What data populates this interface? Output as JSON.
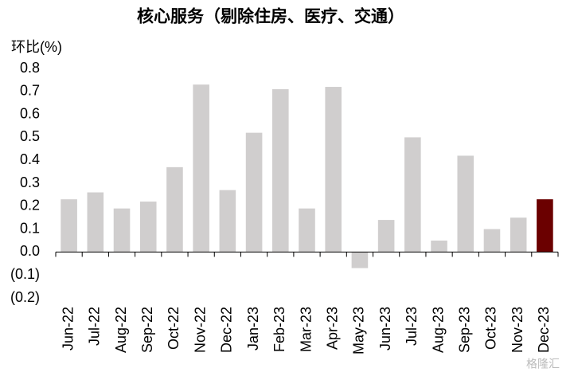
{
  "chart_data": {
    "type": "bar",
    "title": "核心服务（剔除住房、医疗、交通）",
    "y_label": "环比(%)",
    "categories": [
      "Jun-22",
      "Jul-22",
      "Aug-22",
      "Sep-22",
      "Oct-22",
      "Nov-22",
      "Dec-22",
      "Jan-23",
      "Feb-23",
      "Mar-23",
      "Apr-23",
      "May-23",
      "Jun-23",
      "Jul-23",
      "Aug-23",
      "Sep-23",
      "Oct-23",
      "Nov-23",
      "Dec-23"
    ],
    "values": [
      0.23,
      0.26,
      0.19,
      0.22,
      0.37,
      0.73,
      0.27,
      0.52,
      0.71,
      0.19,
      0.72,
      -0.07,
      0.14,
      0.5,
      0.05,
      0.42,
      0.1,
      0.15,
      0.23
    ],
    "colors": [
      "#d0cece",
      "#d0cece",
      "#d0cece",
      "#d0cece",
      "#d0cece",
      "#d0cece",
      "#d0cece",
      "#d0cece",
      "#d0cece",
      "#d0cece",
      "#d0cece",
      "#d0cece",
      "#d0cece",
      "#d0cece",
      "#d0cece",
      "#d0cece",
      "#d0cece",
      "#d0cece",
      "#6b0000"
    ],
    "ylim": [
      -0.2,
      0.8
    ],
    "yticks": [
      0.8,
      0.7,
      0.6,
      0.5,
      0.4,
      0.3,
      0.2,
      0.1,
      {
        "value": 0,
        "label": "0.0"
      },
      {
        "value": -0.1,
        "label": "(0.1)"
      },
      {
        "value": -0.2,
        "label": "(0.2)"
      }
    ],
    "negative_tick_color": "#ff0000",
    "grid": false,
    "watermark": "格隆汇"
  }
}
